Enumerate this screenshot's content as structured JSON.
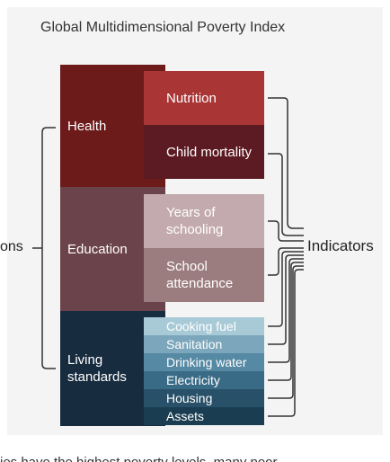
{
  "title": "Global Multidimensional Poverty Index",
  "left_label": "ons",
  "right_label": "Indicators",
  "bottom_text": "ies have the highest poverty levels, many poor",
  "dimensions": [
    {
      "label": "Health",
      "color": "#6d1a1a"
    },
    {
      "label": "Education",
      "color": "#6b434a"
    },
    {
      "label": "Living standards",
      "color": "#182c40"
    }
  ],
  "indicators": {
    "health": [
      {
        "label": "Nutrition",
        "color": "#a93535"
      },
      {
        "label": "Child mortality",
        "color": "#5c1a22"
      }
    ],
    "education": [
      {
        "label": "Years of schooling",
        "color": "#c3aaae"
      },
      {
        "label": "School attendance",
        "color": "#9c7d7f"
      }
    ],
    "living": [
      {
        "label": "Cooking fuel",
        "color": "#a8cad7"
      },
      {
        "label": "Sanitation",
        "color": "#7ca6bb"
      },
      {
        "label": "Drinking water",
        "color": "#5689a3"
      },
      {
        "label": "Electricity",
        "color": "#3a6b86"
      },
      {
        "label": "Housing",
        "color": "#285068"
      },
      {
        "label": "Assets",
        "color": "#1a3d52"
      }
    ]
  }
}
